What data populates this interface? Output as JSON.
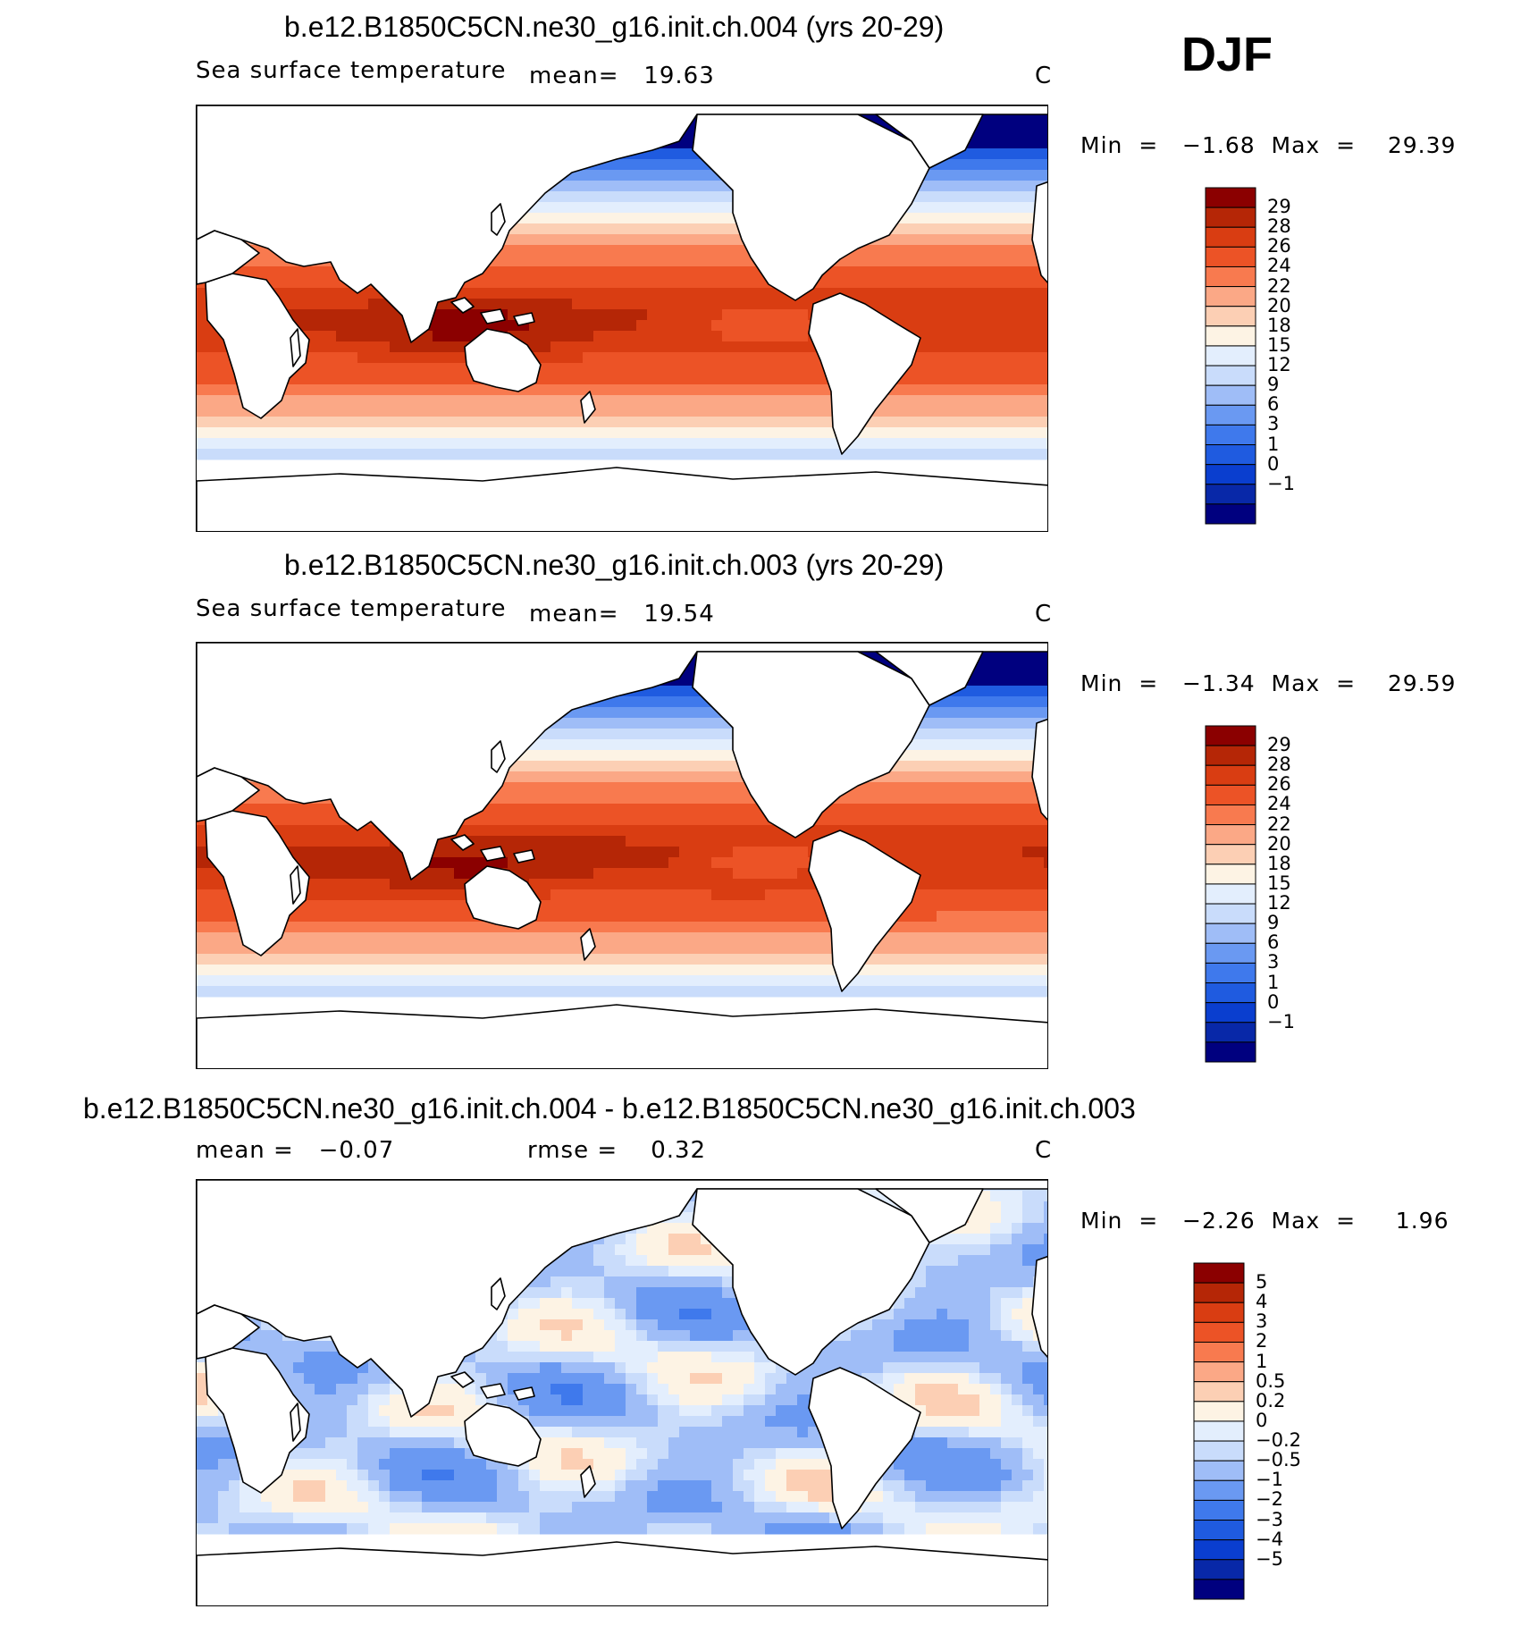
{
  "season": "DJF",
  "colors": {
    "sst_scale": [
      "#00007f",
      "#0828a8",
      "#0a3ecf",
      "#1f5be0",
      "#3f79ec",
      "#6a99f2",
      "#9fbdf7",
      "#c9dcfb",
      "#e3eefd",
      "#fdf3e4",
      "#fccfb4",
      "#fba886",
      "#f87a4f",
      "#ec5326",
      "#d93d12",
      "#b52606",
      "#8b0000"
    ],
    "diff_scale": [
      "#00007f",
      "#0828a8",
      "#0a3ecf",
      "#1f5be0",
      "#3f79ec",
      "#6a99f2",
      "#9fbdf7",
      "#c9dcfb",
      "#e3eefd",
      "#fdf3e4",
      "#fccfb4",
      "#fba886",
      "#f87a4f",
      "#ec5326",
      "#d93d12",
      "#b52606",
      "#8b0000"
    ]
  },
  "panels": [
    {
      "title": "b.e12.B1850C5CN.ne30_g16.init.ch.004 (yrs 20-29)",
      "subtitle_left": "Sea surface temperature",
      "subtitle_mid": "mean=   19.63",
      "units": "C",
      "minmax": "Min  =   −1.68  Max  =    29.39",
      "kind": "sst",
      "colorbar_labels": [
        "29",
        "28",
        "26",
        "24",
        "22",
        "20",
        "18",
        "15",
        "12",
        "9",
        "6",
        "3",
        "1",
        "0",
        "−1"
      ]
    },
    {
      "title": "b.e12.B1850C5CN.ne30_g16.init.ch.003 (yrs 20-29)",
      "subtitle_left": "Sea surface temperature",
      "subtitle_mid": "mean=   19.54",
      "units": "C",
      "minmax": "Min  =   −1.34  Max  =    29.59",
      "kind": "sst",
      "colorbar_labels": [
        "29",
        "28",
        "26",
        "24",
        "22",
        "20",
        "18",
        "15",
        "12",
        "9",
        "6",
        "3",
        "1",
        "0",
        "−1"
      ]
    },
    {
      "title": "b.e12.B1850C5CN.ne30_g16.init.ch.004 - b.e12.B1850C5CN.ne30_g16.init.ch.003",
      "subtitle_left": "mean =   −0.07",
      "subtitle_mid": "rmse =    0.32",
      "units": "C",
      "minmax": "Min  =   −2.26  Max  =     1.96",
      "kind": "diff",
      "colorbar_labels": [
        "5",
        "4",
        "3",
        "2",
        "1",
        "0.5",
        "0.2",
        "0",
        "−0.2",
        "−0.5",
        "−1",
        "−2",
        "−3",
        "−4",
        "−5"
      ]
    }
  ]
}
